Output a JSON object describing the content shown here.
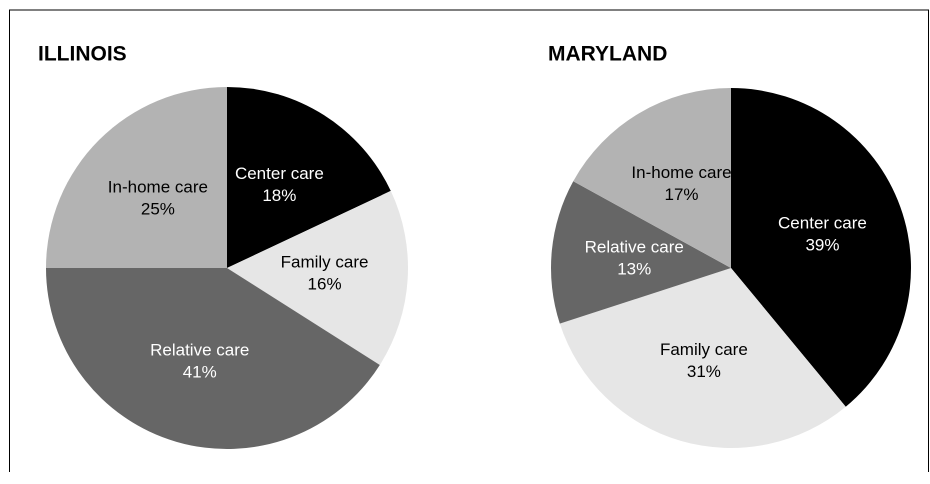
{
  "chart_data": [
    {
      "type": "pie",
      "title": "ILLINOIS",
      "categories": [
        "Center care",
        "Family care",
        "Relative care",
        "In-home care"
      ],
      "values": [
        18,
        16,
        41,
        25
      ],
      "value_labels": [
        "18%",
        "16%",
        "41%",
        "25%"
      ],
      "colors": [
        "#000000",
        "#e6e6e6",
        "#666666",
        "#b3b3b3"
      ]
    },
    {
      "type": "pie",
      "title": "MARYLAND",
      "categories": [
        "Center care",
        "Family care",
        "Relative care",
        "In-home care"
      ],
      "values": [
        39,
        31,
        13,
        17
      ],
      "value_labels": [
        "39%",
        "31%",
        "13%",
        "17%"
      ],
      "colors": [
        "#000000",
        "#e6e6e6",
        "#666666",
        "#b3b3b3"
      ]
    }
  ]
}
